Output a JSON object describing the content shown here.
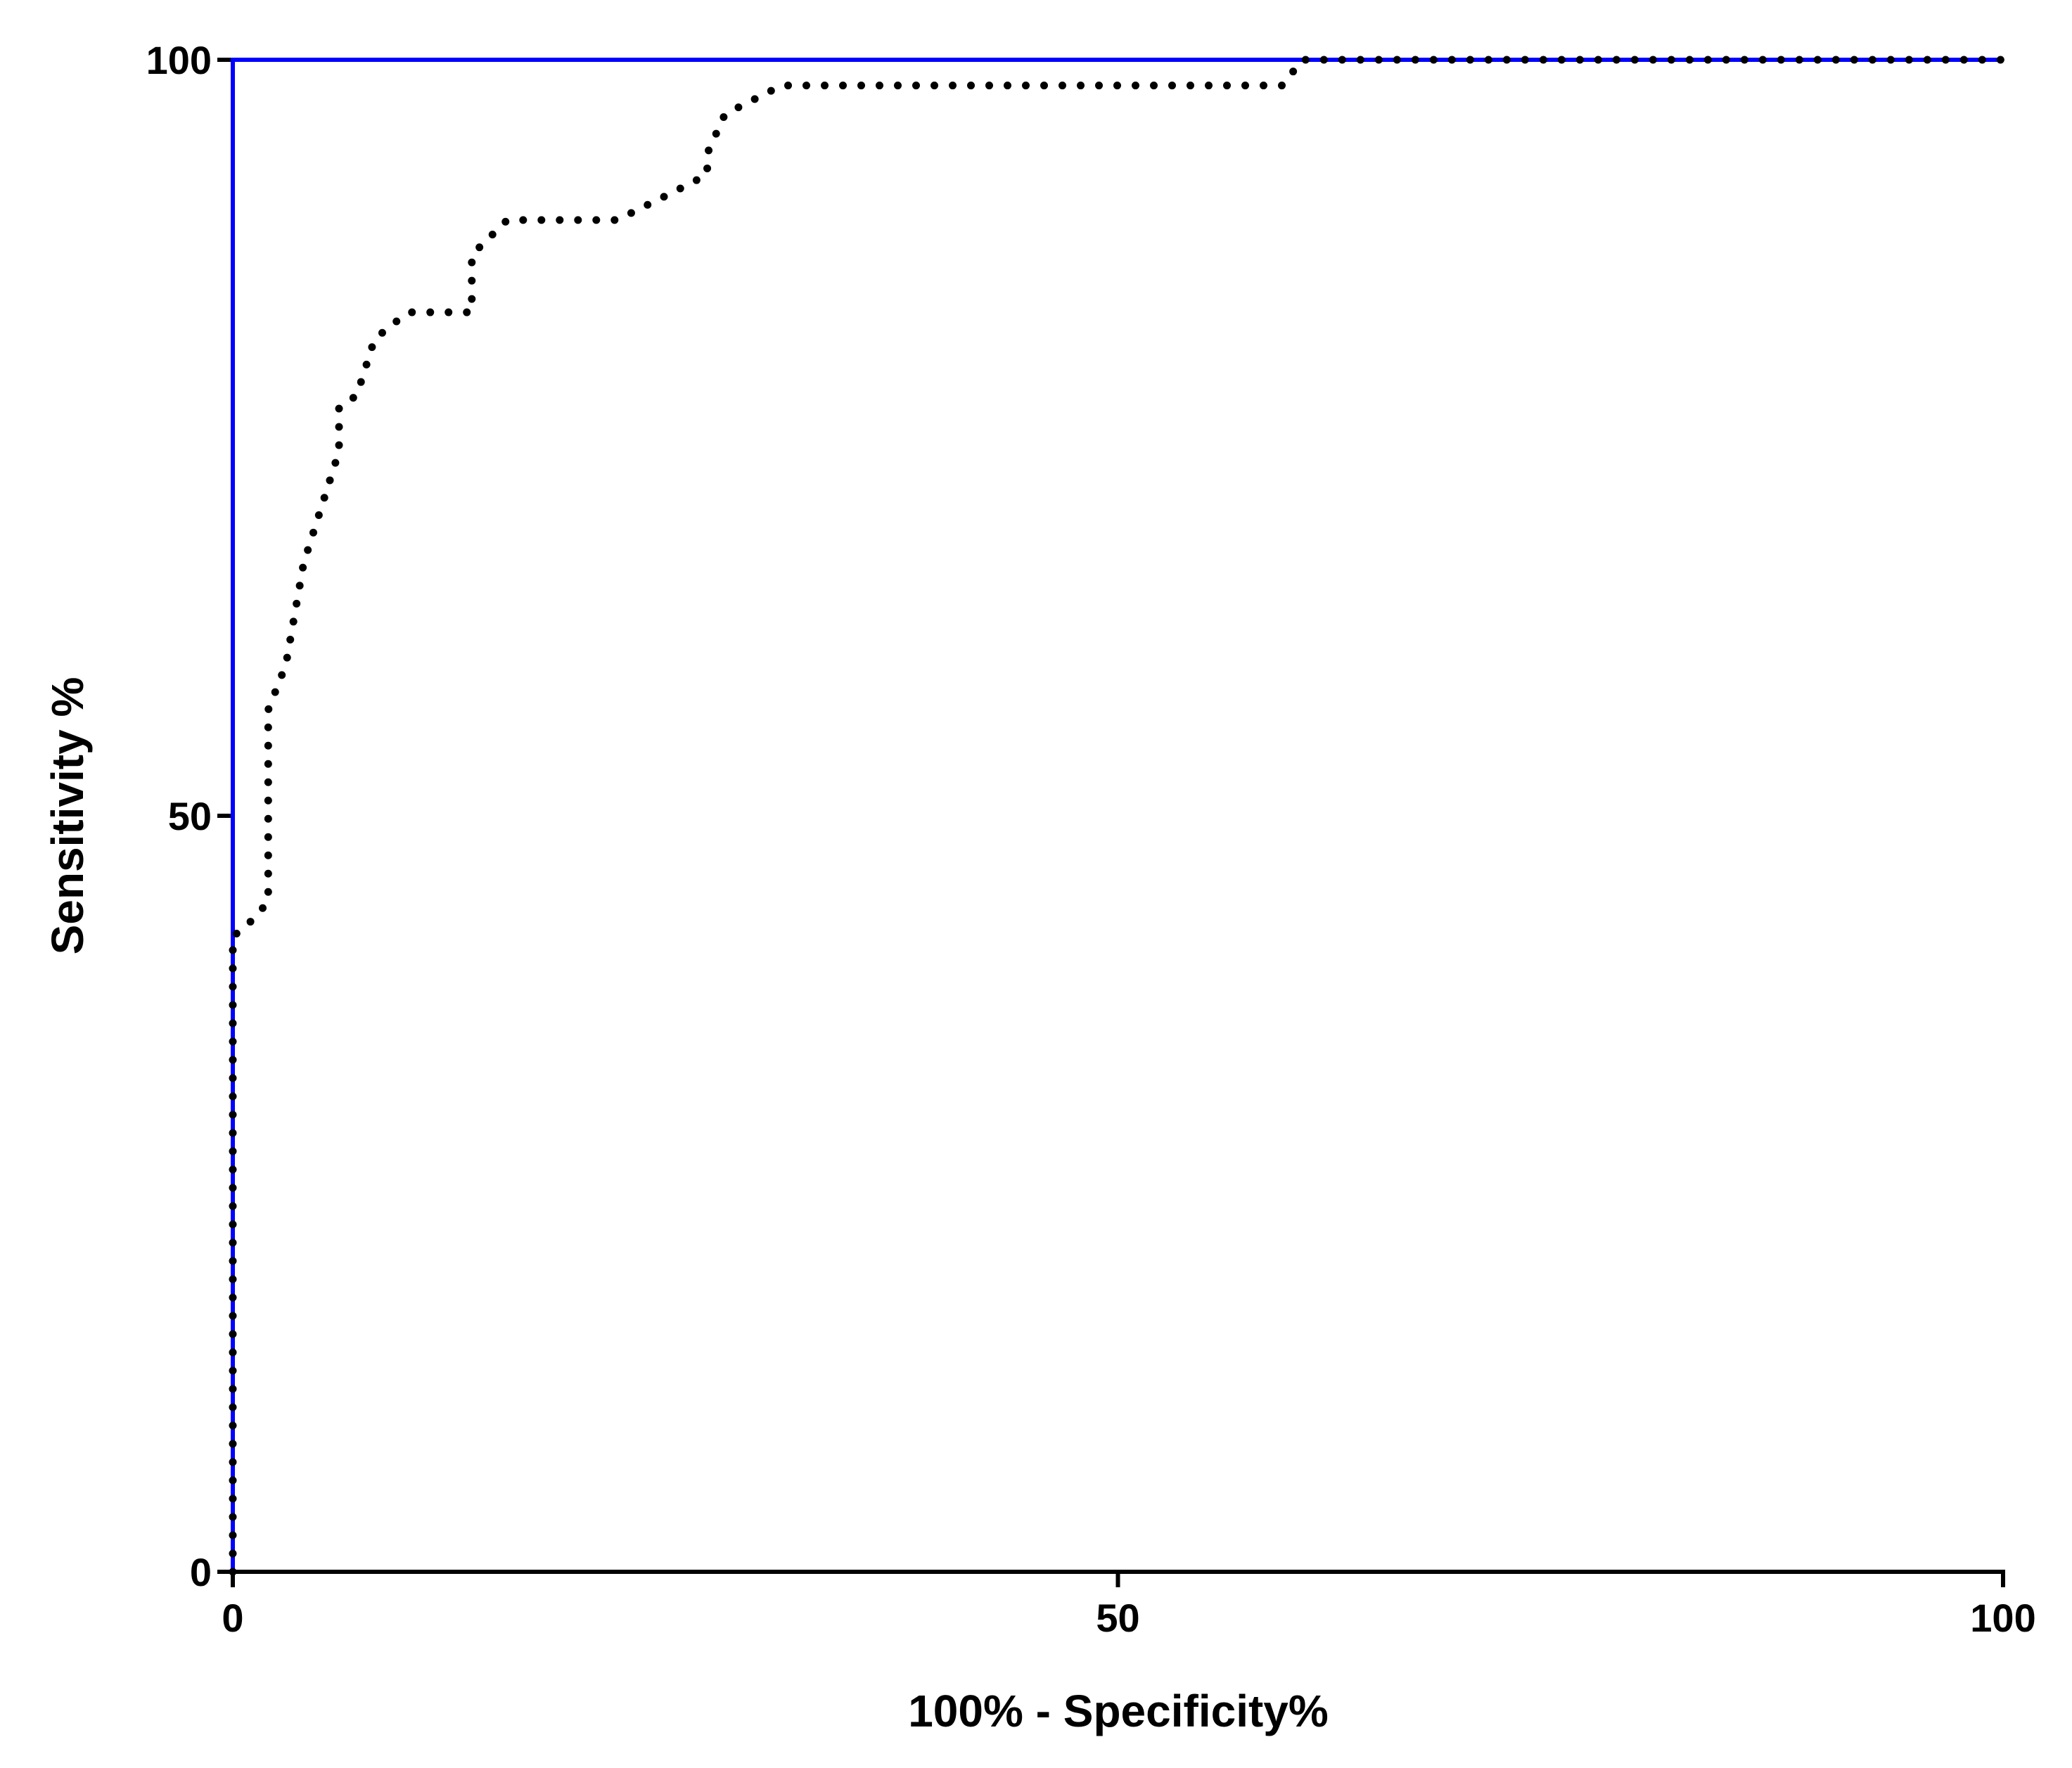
{
  "chart_data": {
    "type": "line",
    "xlabel": "100% - Specificity%",
    "ylabel": "Sensitivity %",
    "x": [
      0,
      0,
      1,
      2,
      2,
      3,
      4,
      5,
      6,
      6,
      7,
      8,
      9,
      10,
      13.5,
      13.5,
      15.5,
      21.7,
      24.8,
      26.8,
      26.8,
      27.8,
      31,
      59.3,
      60.4,
      100
    ],
    "values": [
      0,
      42,
      43,
      44.3,
      57,
      60,
      66.7,
      70.4,
      74.1,
      77,
      77.8,
      81.5,
      82.5,
      83.3,
      83.3,
      87.1,
      89.4,
      89.4,
      91.2,
      92.4,
      93.8,
      96.4,
      98.3,
      98.3,
      100,
      100
    ],
    "color": "#000000",
    "reference": {
      "x": [
        0,
        0,
        100
      ],
      "values": [
        0,
        100,
        100
      ],
      "color": "#0000ff"
    },
    "xlim": [
      0,
      100
    ],
    "xticks": [
      0,
      50,
      100
    ],
    "ylim": [
      0,
      100
    ],
    "yticks": [
      0,
      50,
      100
    ],
    "grid": false
  }
}
